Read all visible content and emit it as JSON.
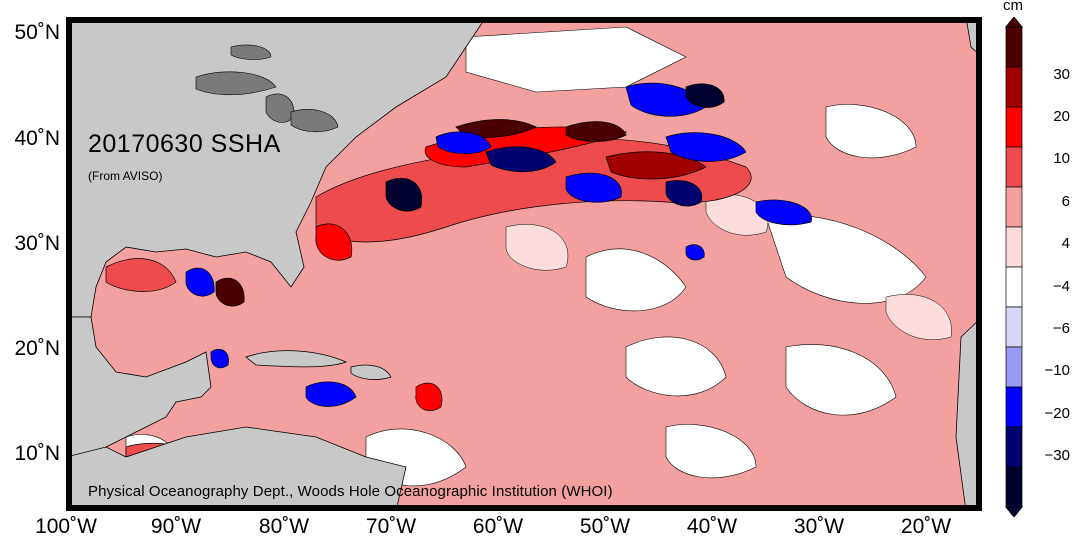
{
  "map": {
    "title": "20170630 SSHA",
    "subtitle": "(From AVISO)",
    "credit": "Physical Oceanography Dept., Woods Hole Oceanographic Institution (WHOI)",
    "lat_labels": [
      "50˚N",
      "40˚N",
      "30˚N",
      "20˚N",
      "10˚N"
    ],
    "lon_labels": [
      "100˚W",
      "90˚W",
      "80˚W",
      "70˚W",
      "60˚W",
      "50˚W",
      "40˚W",
      "30˚W",
      "20˚W"
    ],
    "colors": {
      "land": "#c8c8c8",
      "lakes": "#7a7a7a",
      "ocean_base": "#f2a0a0"
    }
  },
  "colorbar": {
    "unit": "cm",
    "tick_labels": [
      "30",
      "20",
      "10",
      "6",
      "4",
      "−4",
      "−6",
      "−10",
      "−20",
      "−30"
    ],
    "colors": [
      "#4a0000",
      "#a00000",
      "#ff0000",
      "#ee4c4c",
      "#f5a0a0",
      "#fcdcdc",
      "#ffffff",
      "#d6d6f8",
      "#9a9af2",
      "#0000ff",
      "#00006e",
      "#000030"
    ]
  }
}
